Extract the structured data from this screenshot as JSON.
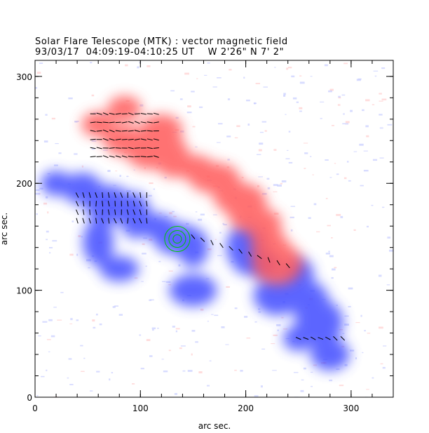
{
  "header": {
    "title": "Solar Flare Telescope (MTK) : vector magnetic field",
    "subtitle_date": "93/03/17",
    "subtitle_time": "04:09:19-04:10:25 UT",
    "subtitle_position": "W 2'26\"  N 7' 2\""
  },
  "axes": {
    "xlabel": "arc sec.",
    "ylabel": "arc sec.",
    "xticks": [
      0,
      100,
      200,
      300
    ],
    "yticks": [
      0,
      100,
      200,
      300
    ],
    "xrange": [
      0,
      340
    ],
    "yrange": [
      0,
      315
    ]
  },
  "colors": {
    "positive_polarity": "#ff5a5a",
    "negative_polarity": "#3f4cff",
    "transverse_vectors": "#000000",
    "contours": "#00c800"
  },
  "magnetogram": {
    "positive_region_centers_arcsec": [
      [
        60,
        255
      ],
      [
        85,
        240
      ],
      [
        110,
        230
      ],
      [
        130,
        225
      ],
      [
        150,
        215
      ],
      [
        170,
        205
      ],
      [
        185,
        190
      ],
      [
        200,
        180
      ],
      [
        210,
        165
      ],
      [
        220,
        150
      ],
      [
        225,
        135
      ],
      [
        230,
        125
      ],
      [
        85,
        270
      ],
      [
        120,
        250
      ]
    ],
    "negative_region_centers_arcsec": [
      [
        20,
        200
      ],
      [
        45,
        195
      ],
      [
        70,
        180
      ],
      [
        95,
        170
      ],
      [
        115,
        160
      ],
      [
        135,
        148
      ],
      [
        150,
        140
      ],
      [
        200,
        140
      ],
      [
        210,
        125
      ],
      [
        250,
        115
      ],
      [
        260,
        90
      ],
      [
        270,
        70
      ],
      [
        250,
        55
      ],
      [
        280,
        40
      ],
      [
        230,
        95
      ],
      [
        60,
        145
      ],
      [
        80,
        120
      ],
      [
        150,
        100
      ]
    ],
    "contour_center_arcsec": [
      135,
      148
    ],
    "contour_radii_arcsec": [
      4,
      8,
      12
    ]
  }
}
